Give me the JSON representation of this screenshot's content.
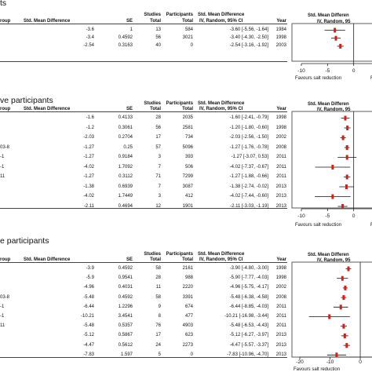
{
  "columns": {
    "group": "roup",
    "smd": "Std. Mean Difference",
    "se": "SE",
    "studies": "Studies",
    "participants": "Participants",
    "smd_ci_a": "Std. Mean Difference",
    "smd_ci_b": "IV, Random, 95% CI",
    "year": "Year",
    "plot_a": "Std. Mean Differen",
    "plot_b": "IV, Random, 95"
  },
  "total": "Total",
  "favours": {
    "left": "Favours salt reduction",
    "right": "Favo"
  },
  "sections": [
    {
      "title": "ts",
      "rows": [
        {
          "name": "",
          "smd": "-3.6",
          "se": "1",
          "studies": "13",
          "participants": "584",
          "ci": "-3.60 [-5.56, -1.64]",
          "year": "1984"
        },
        {
          "name": "",
          "smd": "-3.4",
          "se": "0.4592",
          "studies": "56",
          "participants": "3021",
          "ci": "-3.40 [-4.30, -2.50]",
          "year": "1998"
        },
        {
          "name": "",
          "smd": "-2.54",
          "se": "0.3163",
          "studies": "40",
          "participants": "0",
          "ci": "-2.54 [-3.16, -1.92]",
          "year": "2003"
        }
      ]
    },
    {
      "title": "ve participants",
      "rows": [
        {
          "name": "",
          "smd": "-1.6",
          "se": "0.4133",
          "studies": "28",
          "participants": "2035",
          "ci": "-1.60 [-2.41, -0.79]",
          "year": "1998"
        },
        {
          "name": "",
          "smd": "-1.2",
          "se": "0.3061",
          "studies": "56",
          "participants": "2581",
          "ci": "-1.20 [-1.80, -0.60]",
          "year": "1998"
        },
        {
          "name": "",
          "smd": "-2.03",
          "se": "0.2704",
          "studies": "17",
          "participants": "734",
          "ci": "-2.03 [-2.56, -1.50]",
          "year": "2002"
        },
        {
          "name": "03-8",
          "smd": "-1.27",
          "se": "0.25",
          "studies": "57",
          "participants": "5096",
          "ci": "-1.27 [-1.76, -0.78]",
          "year": "2008"
        },
        {
          "name": "-1",
          "smd": "-1.27",
          "se": "0.9184",
          "studies": "3",
          "participants": "393",
          "ci": "-1.27 [-3.07, 0.53]",
          "year": "2011"
        },
        {
          "name": "-1",
          "smd": "-4.02",
          "se": "1.7092",
          "studies": "7",
          "participants": "506",
          "ci": "-4.02 [-7.37, -0.67]",
          "year": "2011"
        },
        {
          "name": "11",
          "smd": "-1.27",
          "se": "0.3112",
          "studies": "71",
          "participants": "7299",
          "ci": "-1.27 [-1.88, -0.66]",
          "year": "2011"
        },
        {
          "name": "",
          "smd": "-1.38",
          "se": "0.6939",
          "studies": "7",
          "participants": "3087",
          "ci": "-1.38 [-2.74, -0.02]",
          "year": "2013"
        },
        {
          "name": "",
          "smd": "-4.02",
          "se": "1.7449",
          "studies": "3",
          "participants": "412",
          "ci": "-4.02 [-7.44, -0.60]",
          "year": "2013"
        },
        {
          "name": "",
          "smd": "-2.11",
          "se": "0.4694",
          "studies": "12",
          "participants": "1901",
          "ci": "-2.11 [-3.03, -1.19]",
          "year": "2013"
        }
      ]
    },
    {
      "title": "e participants",
      "rows": [
        {
          "name": "",
          "smd": "-3.9",
          "se": "0.4592",
          "studies": "58",
          "participants": "2161",
          "ci": "-3.90 [-4.80, -3.00]",
          "year": "1998"
        },
        {
          "name": "",
          "smd": "-5.9",
          "se": "0.9541",
          "studies": "28",
          "participants": "988",
          "ci": "-5.90 [-7.77, -4.03]",
          "year": "1998"
        },
        {
          "name": "",
          "smd": "-4.96",
          "se": "0.4031",
          "studies": "11",
          "participants": "2220",
          "ci": "-4.96 [-5.75, -4.17]",
          "year": "2002"
        },
        {
          "name": "03-8",
          "smd": "-5.48",
          "se": "0.4592",
          "studies": "58",
          "participants": "3391",
          "ci": "-5.48 [-6.38, -4.58]",
          "year": "2008"
        },
        {
          "name": "-1",
          "smd": "-6.44",
          "se": "1.2296",
          "studies": "9",
          "participants": "674",
          "ci": "-6.44 [-8.85, -4.03]",
          "year": "2011"
        },
        {
          "name": "-1",
          "smd": "-10.21",
          "se": "3.4541",
          "studies": "8",
          "participants": "477",
          "ci": "-10.21 [-16.98, -3.44]",
          "year": "2011"
        },
        {
          "name": "11",
          "smd": "-5.48",
          "se": "0.5357",
          "studies": "76",
          "participants": "4903",
          "ci": "-5.48 [-6.53, -4.43]",
          "year": "2011"
        },
        {
          "name": "",
          "smd": "-5.12",
          "se": "0.5867",
          "studies": "17",
          "participants": "623",
          "ci": "-5.12 [-6.27, -3.97]",
          "year": "2013"
        },
        {
          "name": "",
          "smd": "-4.47",
          "se": "0.5612",
          "studies": "24",
          "participants": "2273",
          "ci": "-4.47 [-5.57, -3.37]",
          "year": "2013"
        },
        {
          "name": "",
          "smd": "-7.83",
          "se": "1.597",
          "studies": "5",
          "participants": "0",
          "ci": "-7.83 [-10.96, -4.70]",
          "year": "2013"
        }
      ]
    }
  ],
  "chart_data": [
    {
      "type": "forest",
      "ticks": [
        "-10",
        "-5",
        "0"
      ],
      "xlim": [
        -10,
        5
      ],
      "points": [
        {
          "est": -3.6,
          "lo": -5.56,
          "hi": -1.64
        },
        {
          "est": -3.4,
          "lo": -4.3,
          "hi": -2.5
        },
        {
          "est": -2.54,
          "lo": -3.16,
          "hi": -1.92
        }
      ]
    },
    {
      "type": "forest",
      "ticks": [
        "-10",
        "-5",
        "0"
      ],
      "xlim": [
        -10,
        5
      ],
      "points": [
        {
          "est": -1.6,
          "lo": -2.41,
          "hi": -0.79
        },
        {
          "est": -1.2,
          "lo": -1.8,
          "hi": -0.6
        },
        {
          "est": -2.03,
          "lo": -2.56,
          "hi": -1.5
        },
        {
          "est": -1.27,
          "lo": -1.76,
          "hi": -0.78
        },
        {
          "est": -1.27,
          "lo": -3.07,
          "hi": 0.53
        },
        {
          "est": -4.02,
          "lo": -7.37,
          "hi": -0.67
        },
        {
          "est": -1.27,
          "lo": -1.88,
          "hi": -0.66
        },
        {
          "est": -1.38,
          "lo": -2.74,
          "hi": -0.02
        },
        {
          "est": -4.02,
          "lo": -7.44,
          "hi": -0.6
        },
        {
          "est": -2.11,
          "lo": -3.03,
          "hi": -1.19
        }
      ]
    },
    {
      "type": "forest",
      "ticks": [
        "-20",
        "-10",
        "0"
      ],
      "xlim": [
        -20,
        7
      ],
      "points": [
        {
          "est": -3.9,
          "lo": -4.8,
          "hi": -3.0
        },
        {
          "est": -5.9,
          "lo": -7.77,
          "hi": -4.03
        },
        {
          "est": -4.96,
          "lo": -5.75,
          "hi": -4.17
        },
        {
          "est": -5.48,
          "lo": -6.38,
          "hi": -4.58
        },
        {
          "est": -6.44,
          "lo": -8.85,
          "hi": -4.03
        },
        {
          "est": -10.21,
          "lo": -16.98,
          "hi": -3.44
        },
        {
          "est": -5.48,
          "lo": -6.53,
          "hi": -4.43
        },
        {
          "est": -5.12,
          "lo": -6.27,
          "hi": -3.97
        },
        {
          "est": -4.47,
          "lo": -5.57,
          "hi": -3.37
        },
        {
          "est": -7.83,
          "lo": -10.96,
          "hi": -4.7
        }
      ]
    }
  ]
}
